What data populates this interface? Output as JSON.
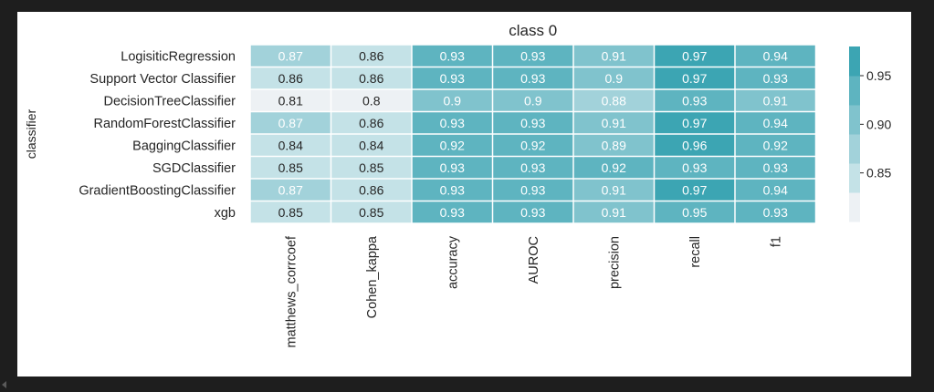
{
  "chart_data": {
    "type": "heatmap",
    "title": "class 0",
    "ylabel": "classifier",
    "xlabel": "",
    "rows": [
      "LogisiticRegression",
      "Support Vector Classifier",
      "DecisionTreeClassifier",
      "RandomForestClassifier",
      "BaggingClassifier",
      "SGDClassifier",
      "GradientBoostingClassifier",
      "xgb"
    ],
    "columns": [
      "matthews_corrcoef",
      "Cohen_kappa",
      "accuracy",
      "AUROC",
      "precision",
      "recall",
      "f1"
    ],
    "values": [
      [
        "0.87",
        "0.86",
        "0.93",
        "0.93",
        "0.91",
        "0.97",
        "0.94"
      ],
      [
        "0.86",
        "0.86",
        "0.93",
        "0.93",
        "0.9",
        "0.97",
        "0.93"
      ],
      [
        "0.81",
        "0.8",
        "0.9",
        "0.9",
        "0.88",
        "0.93",
        "0.91"
      ],
      [
        "0.87",
        "0.86",
        "0.93",
        "0.93",
        "0.91",
        "0.97",
        "0.94"
      ],
      [
        "0.84",
        "0.84",
        "0.92",
        "0.92",
        "0.89",
        "0.96",
        "0.92"
      ],
      [
        "0.85",
        "0.85",
        "0.93",
        "0.93",
        "0.92",
        "0.93",
        "0.93"
      ],
      [
        "0.87",
        "0.86",
        "0.93",
        "0.93",
        "0.91",
        "0.97",
        "0.94"
      ],
      [
        "0.85",
        "0.85",
        "0.93",
        "0.93",
        "0.91",
        "0.95",
        "0.93"
      ]
    ],
    "vmin": 0.8,
    "vmax": 0.98,
    "colorbar": {
      "ticks": [
        "0.85",
        "0.90",
        "0.95"
      ],
      "tick_values": [
        0.85,
        0.9,
        0.95
      ],
      "palette": [
        "#edf1f4",
        "#c4e2e7",
        "#a2d2da",
        "#80c3cd",
        "#5eb4c0",
        "#3ca5b3"
      ]
    },
    "grid": false,
    "legend": "colorbar-right"
  }
}
